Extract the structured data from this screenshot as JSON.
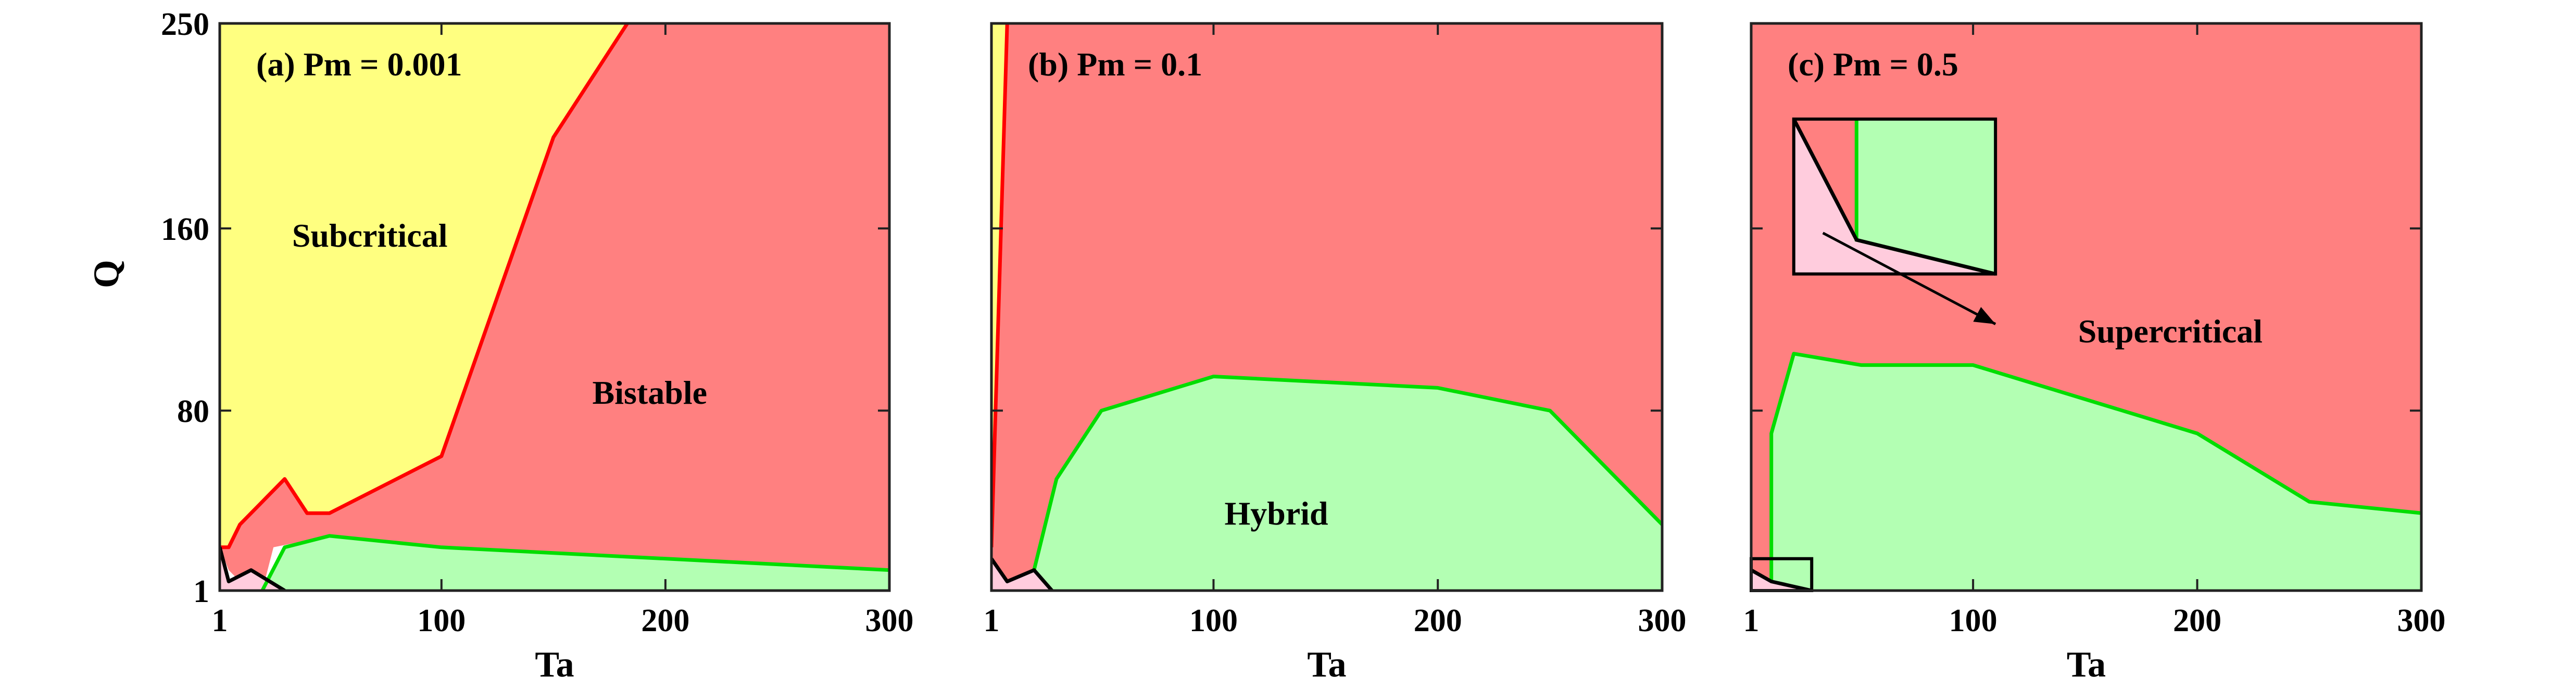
{
  "colors": {
    "subcritical": "#ffff80",
    "bistable": "#ff8080",
    "hybrid": "#b3ffb3",
    "supercritical": "#ffccdd",
    "subcritical_boundary": "#ff0000",
    "hybrid_boundary": "#00dd00",
    "supercritical_boundary": "#000000"
  },
  "chart_data": [
    {
      "type": "area",
      "title": "(a) Pm = 0.001",
      "xlabel": "Ta",
      "ylabel": "Q",
      "xlim": [
        1,
        300
      ],
      "ylim": [
        1,
        250
      ],
      "xticks": [
        1,
        100,
        200,
        300
      ],
      "yticks": [
        1,
        80,
        160,
        250
      ],
      "regions": [
        {
          "name": "Subcritical",
          "color": "#ffff80",
          "label": "Subcritical",
          "label_pos": [
            68,
            152
          ],
          "points": [
            [
              1,
              250
            ],
            [
              183,
              250
            ],
            [
              150,
              200
            ],
            [
              100,
              60
            ],
            [
              50,
              35
            ],
            [
              40,
              35
            ],
            [
              30,
              50
            ],
            [
              20,
              40
            ],
            [
              10,
              30
            ],
            [
              5,
              20
            ],
            [
              1,
              20
            ]
          ]
        },
        {
          "name": "Bistable",
          "color": "#ff8080",
          "label": "Bistable",
          "label_pos": [
            193,
            83
          ],
          "points": [
            [
              183,
              250
            ],
            [
              300,
              250
            ],
            [
              300,
              10
            ],
            [
              100,
              20
            ],
            [
              50,
              25
            ],
            [
              25,
              20
            ],
            [
              20,
              1
            ],
            [
              14,
              1
            ],
            [
              5,
              10
            ],
            [
              1,
              20
            ],
            [
              5,
              20
            ],
            [
              10,
              30
            ],
            [
              20,
              40
            ],
            [
              30,
              50
            ],
            [
              40,
              35
            ],
            [
              50,
              35
            ],
            [
              100,
              60
            ],
            [
              150,
              200
            ]
          ]
        },
        {
          "name": "Hybrid",
          "color": "#b3ffb3",
          "label": "",
          "points": [
            [
              20,
              1
            ],
            [
              300,
              1
            ],
            [
              300,
              10
            ],
            [
              100,
              20
            ],
            [
              50,
              25
            ],
            [
              30,
              20
            ]
          ]
        },
        {
          "name": "Supercritical",
          "color": "#ffccdd",
          "label": "",
          "points": [
            [
              1,
              1
            ],
            [
              30,
              1
            ],
            [
              15,
              10
            ],
            [
              5,
              5
            ],
            [
              1,
              20
            ]
          ]
        }
      ],
      "boundaries": [
        {
          "color": "#ff0000",
          "points": [
            [
              1,
              20
            ],
            [
              5,
              20
            ],
            [
              10,
              30
            ],
            [
              20,
              40
            ],
            [
              30,
              50
            ],
            [
              40,
              35
            ],
            [
              50,
              35
            ],
            [
              100,
              60
            ],
            [
              150,
              200
            ],
            [
              183,
              250
            ]
          ]
        },
        {
          "color": "#00dd00",
          "points": [
            [
              20,
              1
            ],
            [
              30,
              20
            ],
            [
              50,
              25
            ],
            [
              100,
              20
            ],
            [
              300,
              10
            ]
          ]
        },
        {
          "color": "#000000",
          "points": [
            [
              1,
              20
            ],
            [
              5,
              5
            ],
            [
              15,
              10
            ],
            [
              30,
              1
            ]
          ]
        }
      ]
    },
    {
      "type": "area",
      "title": "(b) Pm = 0.1",
      "xlabel": "Ta",
      "ylabel": "",
      "xlim": [
        1,
        300
      ],
      "ylim": [
        1,
        250
      ],
      "xticks": [
        1,
        100,
        200,
        300
      ],
      "yticks": [],
      "regions": [
        {
          "name": "Subcritical",
          "color": "#ffff80",
          "label": "",
          "points": [
            [
              1,
              250
            ],
            [
              8,
              250
            ],
            [
              1,
              20
            ]
          ]
        },
        {
          "name": "Bistable",
          "color": "#ff8080",
          "label": "",
          "points": [
            [
              8,
              250
            ],
            [
              300,
              250
            ],
            [
              300,
              30
            ],
            [
              250,
              80
            ],
            [
              200,
              90
            ],
            [
              100,
              95
            ],
            [
              50,
              80
            ],
            [
              30,
              50
            ],
            [
              20,
              10
            ],
            [
              8,
              5
            ],
            [
              1,
              15
            ],
            [
              1,
              20
            ]
          ]
        },
        {
          "name": "Hybrid",
          "color": "#b3ffb3",
          "label": "Hybrid",
          "label_pos": [
            128,
            30
          ],
          "points": [
            [
              28,
              1
            ],
            [
              300,
              1
            ],
            [
              300,
              30
            ],
            [
              250,
              80
            ],
            [
              200,
              90
            ],
            [
              100,
              95
            ],
            [
              50,
              80
            ],
            [
              30,
              50
            ],
            [
              20,
              10
            ]
          ]
        },
        {
          "name": "Supercritical",
          "color": "#ffccdd",
          "label": "",
          "points": [
            [
              1,
              1
            ],
            [
              28,
              1
            ],
            [
              20,
              10
            ],
            [
              8,
              5
            ],
            [
              1,
              15
            ]
          ]
        }
      ],
      "boundaries": [
        {
          "color": "#ff0000",
          "points": [
            [
              1,
              20
            ],
            [
              8,
              250
            ]
          ]
        },
        {
          "color": "#00dd00",
          "points": [
            [
              20,
              10
            ],
            [
              30,
              50
            ],
            [
              50,
              80
            ],
            [
              100,
              95
            ],
            [
              200,
              90
            ],
            [
              250,
              80
            ],
            [
              300,
              30
            ]
          ]
        },
        {
          "color": "#000000",
          "points": [
            [
              1,
              15
            ],
            [
              8,
              5
            ],
            [
              20,
              10
            ],
            [
              28,
              1
            ]
          ]
        }
      ]
    },
    {
      "type": "area",
      "title": "(c) Pm = 0.5",
      "xlabel": "Ta",
      "ylabel": "",
      "xlim": [
        1,
        300
      ],
      "ylim": [
        1,
        250
      ],
      "xticks": [
        1,
        100,
        200,
        300
      ],
      "yticks": [],
      "regions": [
        {
          "name": "Bistable",
          "color": "#ff8080",
          "label": "",
          "points": [
            [
              1,
              250
            ],
            [
              300,
              250
            ],
            [
              300,
              35
            ],
            [
              250,
              40
            ],
            [
              200,
              70
            ],
            [
              100,
              100
            ],
            [
              50,
              100
            ],
            [
              20,
              105
            ],
            [
              10,
              70
            ],
            [
              10,
              5
            ],
            [
              1,
              10
            ]
          ]
        },
        {
          "name": "Hybrid",
          "color": "#b3ffb3",
          "label": "",
          "points": [
            [
              10,
              5
            ],
            [
              10,
              70
            ],
            [
              20,
              105
            ],
            [
              50,
              100
            ],
            [
              100,
              100
            ],
            [
              200,
              70
            ],
            [
              250,
              40
            ],
            [
              300,
              35
            ],
            [
              300,
              1
            ],
            [
              28,
              1
            ]
          ]
        },
        {
          "name": "Supercritical",
          "color": "#ffccdd",
          "label": "Supercritical",
          "label_pos": [
            188,
            110
          ],
          "points": [
            [
              1,
              1
            ],
            [
              28,
              1
            ],
            [
              10,
              5
            ],
            [
              1,
              10
            ]
          ]
        }
      ],
      "boundaries": [
        {
          "color": "#00dd00",
          "points": [
            [
              10,
              5
            ],
            [
              10,
              70
            ],
            [
              20,
              105
            ],
            [
              50,
              100
            ],
            [
              100,
              100
            ],
            [
              200,
              70
            ],
            [
              250,
              40
            ],
            [
              300,
              35
            ]
          ]
        },
        {
          "color": "#000000",
          "points": [
            [
              1,
              10
            ],
            [
              10,
              5
            ],
            [
              28,
              1
            ]
          ]
        }
      ],
      "inset": {
        "zoom_box": [
          [
            1,
            1
          ],
          [
            28,
            15
          ]
        ],
        "inset_box": [
          [
            20,
            140
          ],
          [
            110,
            208
          ]
        ],
        "split_x": 48,
        "arrow_from": [
          33,
          158
        ],
        "arrow_to": [
          110,
          118
        ]
      }
    }
  ]
}
